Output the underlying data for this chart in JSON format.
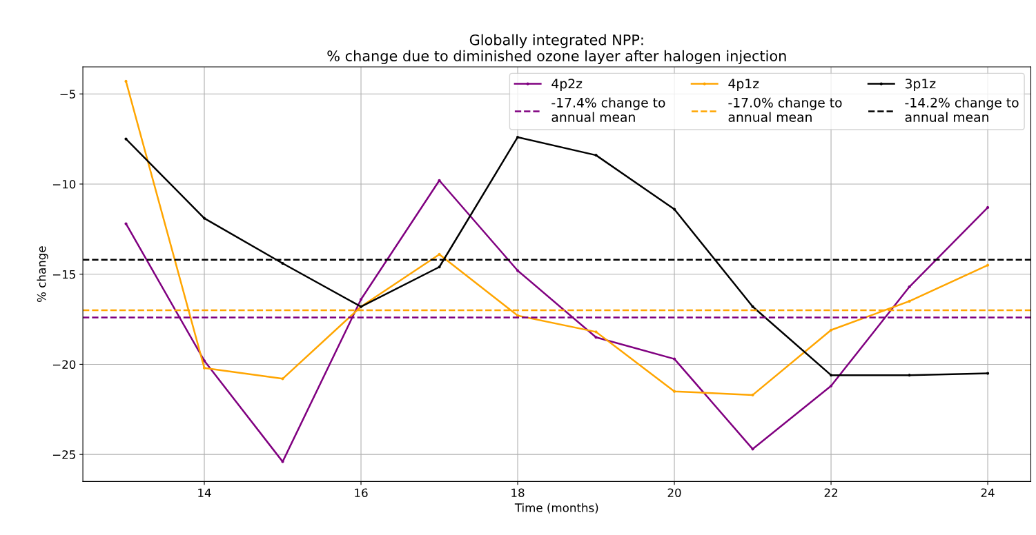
{
  "chart_data": {
    "type": "line",
    "title": "Globally integrated NPP:\n% change due to diminished ozone layer after halogen injection",
    "xlabel": "Time (months)",
    "ylabel": "% change",
    "x": [
      13,
      14,
      15,
      16,
      17,
      18,
      19,
      20,
      21,
      22,
      23,
      24
    ],
    "series": [
      {
        "name": "4p2z",
        "color": "#800080",
        "values": [
          -12.2,
          -19.8,
          -25.4,
          -16.4,
          -9.8,
          -14.8,
          -18.5,
          -19.7,
          -24.7,
          -21.2,
          -15.7,
          -11.3
        ]
      },
      {
        "name": "4p1z",
        "color": "#ffa500",
        "values": [
          -4.3,
          -20.2,
          -20.8,
          -16.8,
          -13.9,
          -17.3,
          -18.2,
          -21.5,
          -21.7,
          -18.1,
          -16.5,
          -14.5
        ]
      },
      {
        "name": "3p1z",
        "color": "#000000",
        "values": [
          -7.5,
          -11.9,
          -14.4,
          -16.8,
          -14.6,
          -7.4,
          -8.4,
          -11.4,
          -16.8,
          -20.6,
          -20.6,
          -20.5
        ]
      }
    ],
    "ref_lines": [
      {
        "axis": "y",
        "value": -17.4,
        "label": "-17.4% change to\nannual mean",
        "color": "#800080",
        "line_style": "dashed"
      },
      {
        "axis": "y",
        "value": -17.0,
        "label": "-17.0% change to\nannual mean",
        "color": "#ffa500",
        "line_style": "dashed"
      },
      {
        "axis": "y",
        "value": -14.2,
        "label": "-14.2% change to\nannual mean",
        "color": "#000000",
        "line_style": "dashed"
      }
    ],
    "xlim": [
      12.45,
      24.55
    ],
    "xticks": [
      14,
      16,
      18,
      20,
      22,
      24
    ],
    "ylim": [
      -26.5,
      -3.5
    ],
    "yticks": [
      {
        "value": -25,
        "label": "−25"
      },
      {
        "value": -20,
        "label": "−20"
      },
      {
        "value": -15,
        "label": "−15"
      },
      {
        "value": -10,
        "label": "−10"
      },
      {
        "value": -5,
        "label": "−5"
      }
    ],
    "grid": true,
    "legend": "top right",
    "marker": "circle",
    "line_style": "solid"
  }
}
